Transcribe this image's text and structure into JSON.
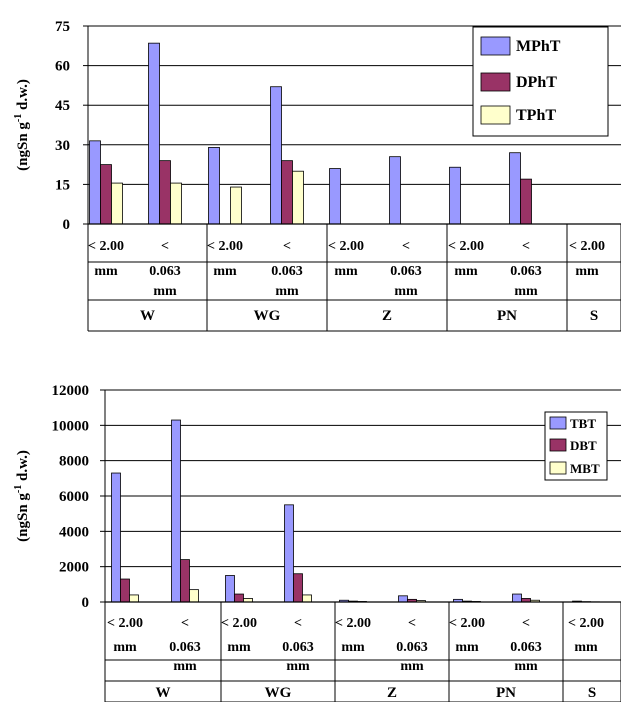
{
  "colors": {
    "series1": "#9999ff",
    "series2": "#993366",
    "series3": "#ffffcc",
    "edge": "#000000"
  },
  "chart_data": [
    {
      "type": "bar",
      "ylabel": "(ngSn g-1 d.w.)",
      "ylabel_main": "(ngSn g",
      "ylabel_sup": "-1",
      "ylabel_tail": " d.w.)",
      "ylim": [
        0,
        75
      ],
      "yticks": [
        0,
        15,
        30,
        45,
        60,
        75
      ],
      "ytick_labels": [
        "0",
        "15",
        "30",
        "45",
        "60",
        "75"
      ],
      "grid": true,
      "legend_position": "top-right",
      "groups": [
        "W",
        "WG",
        "Z",
        "PN",
        "S"
      ],
      "categories": [
        {
          "group": "W",
          "line1": "< 2.00",
          "line2": "mm",
          "line3": ""
        },
        {
          "group": "W",
          "line1": "<",
          "line2": "0.063",
          "line3": "mm"
        },
        {
          "group": "WG",
          "line1": "< 2.00",
          "line2": "mm",
          "line3": ""
        },
        {
          "group": "WG",
          "line1": "<",
          "line2": "0.063",
          "line3": "mm"
        },
        {
          "group": "Z",
          "line1": "< 2.00",
          "line2": "mm",
          "line3": ""
        },
        {
          "group": "Z",
          "line1": "<",
          "line2": "0.063",
          "line3": "mm"
        },
        {
          "group": "PN",
          "line1": "< 2.00",
          "line2": "mm",
          "line3": ""
        },
        {
          "group": "PN",
          "line1": "<",
          "line2": "0.063",
          "line3": "mm"
        },
        {
          "group": "S",
          "line1": "< 2.00",
          "line2": "mm",
          "line3": ""
        }
      ],
      "series": [
        {
          "name": "MPhT",
          "values": [
            31.5,
            68.5,
            29,
            52,
            21,
            25.5,
            21.5,
            27,
            0
          ]
        },
        {
          "name": "DPhT",
          "values": [
            22.5,
            24,
            0,
            24,
            0,
            0,
            0,
            17,
            0
          ]
        },
        {
          "name": "TPhT",
          "values": [
            15.5,
            15.5,
            14,
            20,
            0,
            0,
            0,
            0,
            0
          ]
        }
      ]
    },
    {
      "type": "bar",
      "ylabel": "(ngSn g-1 d.w.)",
      "ylabel_main": "(ngSn g",
      "ylabel_sup": "-1",
      "ylabel_tail": " d.w.)",
      "ylim": [
        0,
        12000
      ],
      "yticks": [
        0,
        2000,
        4000,
        6000,
        8000,
        10000,
        12000
      ],
      "ytick_labels": [
        "0",
        "2000",
        "4000",
        "6000",
        "8000",
        "10000",
        "12000"
      ],
      "grid": true,
      "legend_position": "top-right",
      "groups": [
        "W",
        "WG",
        "Z",
        "PN",
        "S"
      ],
      "categories": [
        {
          "group": "W",
          "line1": "< 2.00",
          "line2": "mm",
          "line3": ""
        },
        {
          "group": "W",
          "line1": "<",
          "line2": "0.063",
          "line3": "mm"
        },
        {
          "group": "WG",
          "line1": "< 2.00",
          "line2": "mm",
          "line3": ""
        },
        {
          "group": "WG",
          "line1": "<",
          "line2": "0.063",
          "line3": "mm"
        },
        {
          "group": "Z",
          "line1": "< 2.00",
          "line2": "mm",
          "line3": ""
        },
        {
          "group": "Z",
          "line1": "<",
          "line2": "0.063",
          "line3": "mm"
        },
        {
          "group": "PN",
          "line1": "< 2.00",
          "line2": "mm",
          "line3": ""
        },
        {
          "group": "PN",
          "line1": "<",
          "line2": "0.063",
          "line3": "mm"
        },
        {
          "group": "S",
          "line1": "< 2.00",
          "line2": "mm",
          "line3": ""
        }
      ],
      "series": [
        {
          "name": "TBT",
          "values": [
            7300,
            10300,
            1500,
            5500,
            100,
            350,
            150,
            450,
            50
          ]
        },
        {
          "name": "DBT",
          "values": [
            1300,
            2400,
            450,
            1600,
            50,
            150,
            50,
            200,
            20
          ]
        },
        {
          "name": "MBT",
          "values": [
            400,
            700,
            200,
            400,
            30,
            80,
            30,
            100,
            10
          ]
        }
      ]
    }
  ]
}
